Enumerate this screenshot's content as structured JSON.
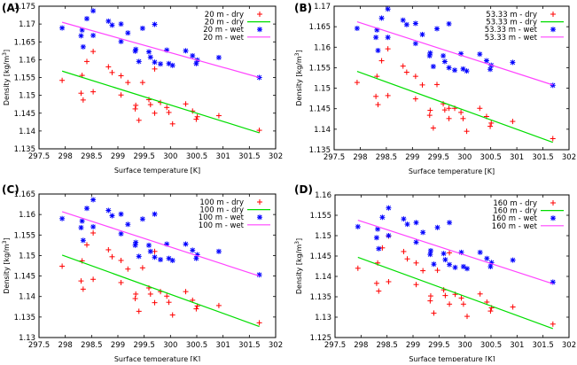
{
  "chart_data": [
    {
      "type": "scatter",
      "panel_label": "(A)",
      "xlabel": "Surface temperature [K]",
      "ylabel": "Density [kg/m",
      "ylabel_sup": "3",
      "ylabel_end": "]",
      "xlim": [
        297.5,
        302
      ],
      "ylim": [
        1.135,
        1.175
      ],
      "xticks": [
        "297.5",
        "298",
        "298.5",
        "299",
        "299.5",
        "300",
        "300.5",
        "301",
        "301.5",
        "302"
      ],
      "yticks": [
        "1.135",
        "1.14",
        "1.145",
        "1.15",
        "1.155",
        "1.16",
        "1.165",
        "1.17",
        "1.175"
      ],
      "legend": {
        "placement": "top-right",
        "entries": [
          "20 m - dry",
          "20 m - dry",
          "20 m - wet",
          "20 m - wet"
        ]
      },
      "x": [
        297.94,
        298.3,
        298.32,
        298.34,
        298.41,
        298.53,
        298.53,
        298.82,
        298.89,
        299.06,
        299.06,
        299.19,
        299.33,
        299.34,
        299.4,
        299.47,
        299.59,
        299.62,
        299.7,
        299.7,
        299.81,
        299.93,
        299.97,
        300.04,
        300.29,
        300.42,
        300.49,
        300.51,
        300.92,
        301.69
      ],
      "series": [
        {
          "name": "20 m - dry",
          "kind": "points",
          "marker": "plus",
          "color": "#ff0000",
          "values": [
            1.1542,
            1.1506,
            1.1556,
            1.1487,
            1.1595,
            1.1623,
            1.151,
            1.158,
            1.1564,
            1.1555,
            1.1501,
            1.1536,
            1.1462,
            1.1472,
            1.143,
            1.1536,
            1.1488,
            1.1474,
            1.1574,
            1.145,
            1.148,
            1.1466,
            1.1452,
            1.142,
            1.1476,
            1.1456,
            1.1433,
            1.144,
            1.1443,
            1.1402
          ]
        },
        {
          "name": "20 m - dry",
          "kind": "fit",
          "color": "#00dd00",
          "x": [
            297.94,
            301.69
          ],
          "values": [
            1.1568,
            1.1395
          ]
        },
        {
          "name": "20 m - wet",
          "kind": "points",
          "marker": "star",
          "color": "#0000ff",
          "values": [
            1.1689,
            1.1667,
            1.1683,
            1.1636,
            1.1715,
            1.1737,
            1.1668,
            1.1708,
            1.1697,
            1.17,
            1.1651,
            1.1675,
            1.1624,
            1.1629,
            1.1595,
            1.1688,
            1.1622,
            1.1607,
            1.1699,
            1.1593,
            1.1588,
            1.1627,
            1.1589,
            1.1584,
            1.1625,
            1.1611,
            1.1589,
            1.1599,
            1.1606,
            1.155
          ]
        },
        {
          "name": "20 m - wet",
          "kind": "fit",
          "color": "#ff44ff",
          "x": [
            297.94,
            301.69
          ],
          "values": [
            1.1705,
            1.155
          ]
        }
      ]
    },
    {
      "type": "scatter",
      "panel_label": "(B)",
      "xlabel": "Surface temperature [K]",
      "ylabel": "Density [kg/m",
      "ylabel_sup": "3",
      "ylabel_end": "]",
      "xlim": [
        297.5,
        302
      ],
      "ylim": [
        1.135,
        1.17
      ],
      "xticks": [
        "297.5",
        "298",
        "298.5",
        "299",
        "299.5",
        "300",
        "300.5",
        "301",
        "301.5",
        "302"
      ],
      "yticks": [
        "1.135",
        "1.14",
        "1.145",
        "1.15",
        "1.155",
        "1.16",
        "1.165",
        "1.17"
      ],
      "legend": {
        "placement": "top-right",
        "entries": [
          "53.33 m - dry",
          "53.33 m - dry",
          "53.33 m - wet",
          "53.33 m - wet"
        ]
      },
      "x": [
        297.94,
        298.3,
        298.32,
        298.34,
        298.41,
        298.53,
        298.53,
        298.82,
        298.89,
        299.06,
        299.06,
        299.19,
        299.33,
        299.34,
        299.4,
        299.47,
        299.59,
        299.62,
        299.7,
        299.7,
        299.81,
        299.93,
        299.97,
        300.04,
        300.29,
        300.42,
        300.49,
        300.51,
        300.92,
        301.69
      ],
      "series": [
        {
          "name": "53.33 m - dry",
          "kind": "points",
          "marker": "plus",
          "color": "#ff0000",
          "values": [
            1.1514,
            1.148,
            1.1529,
            1.146,
            1.1567,
            1.1596,
            1.1482,
            1.1554,
            1.1539,
            1.1529,
            1.1474,
            1.1508,
            1.1434,
            1.1446,
            1.1403,
            1.1509,
            1.1462,
            1.1447,
            1.1426,
            1.1451,
            1.1451,
            1.1441,
            1.1426,
            1.1395,
            1.1451,
            1.1431,
            1.1407,
            1.1415,
            1.1419,
            1.1377
          ]
        },
        {
          "name": "53.33 m - dry",
          "kind": "fit",
          "color": "#00dd00",
          "x": [
            297.94,
            301.69
          ],
          "values": [
            1.1541,
            1.1368
          ]
        },
        {
          "name": "53.33 m - wet",
          "kind": "points",
          "marker": "star",
          "color": "#0000ff",
          "values": [
            1.1646,
            1.1624,
            1.1642,
            1.1592,
            1.1671,
            1.1693,
            1.1624,
            1.1666,
            1.1655,
            1.1658,
            1.1609,
            1.1631,
            1.1579,
            1.1586,
            1.1553,
            1.1645,
            1.1579,
            1.1565,
            1.1657,
            1.155,
            1.1544,
            1.1584,
            1.1547,
            1.1542,
            1.1583,
            1.1567,
            1.1546,
            1.1556,
            1.1563,
            1.1507
          ]
        },
        {
          "name": "53.33 m - wet",
          "kind": "fit",
          "color": "#ff44ff",
          "x": [
            297.94,
            301.69
          ],
          "values": [
            1.1662,
            1.1508
          ]
        }
      ]
    },
    {
      "type": "scatter",
      "panel_label": "(C)",
      "xlabel": "Surface temperature [K]",
      "ylabel": "Density [kg/m",
      "ylabel_sup": "3",
      "ylabel_end": "]",
      "xlim": [
        297.5,
        302
      ],
      "ylim": [
        1.13,
        1.165
      ],
      "xticks": [
        "297.5",
        "298",
        "298.5",
        "299",
        "299.5",
        "300",
        "300.5",
        "301",
        "301.5",
        "302"
      ],
      "yticks": [
        "1.13",
        "1.135",
        "1.14",
        "1.145",
        "1.15",
        "1.155",
        "1.16",
        "1.165"
      ],
      "legend": {
        "placement": "top-right",
        "entries": [
          "100 m - dry",
          "100 m - dry",
          "100 m - wet",
          "100 m - wet"
        ]
      },
      "x": [
        297.94,
        298.3,
        298.32,
        298.34,
        298.41,
        298.53,
        298.53,
        298.82,
        298.89,
        299.06,
        299.06,
        299.19,
        299.33,
        299.34,
        299.4,
        299.47,
        299.59,
        299.62,
        299.7,
        299.7,
        299.81,
        299.93,
        299.97,
        300.04,
        300.29,
        300.42,
        300.49,
        300.51,
        300.92,
        301.69
      ],
      "series": [
        {
          "name": "100 m - dry",
          "kind": "points",
          "marker": "plus",
          "color": "#ff0000",
          "values": [
            1.1474,
            1.1438,
            1.1487,
            1.1418,
            1.1526,
            1.1555,
            1.1442,
            1.1514,
            1.1497,
            1.1488,
            1.1434,
            1.1467,
            1.1395,
            1.1406,
            1.1364,
            1.147,
            1.1421,
            1.1406,
            1.151,
            1.1385,
            1.1412,
            1.1401,
            1.1386,
            1.1355,
            1.1412,
            1.1391,
            1.137,
            1.1377,
            1.1378,
            1.1336
          ]
        },
        {
          "name": "100 m - dry",
          "kind": "fit",
          "color": "#00dd00",
          "x": [
            297.94,
            301.69
          ],
          "values": [
            1.1501,
            1.1327
          ]
        },
        {
          "name": "100 m - wet",
          "kind": "points",
          "marker": "star",
          "color": "#0000ff",
          "values": [
            1.159,
            1.1568,
            1.1584,
            1.1537,
            1.1615,
            1.1636,
            1.157,
            1.161,
            1.1597,
            1.1601,
            1.1553,
            1.1576,
            1.1525,
            1.1532,
            1.1498,
            1.1589,
            1.1525,
            1.151,
            1.1601,
            1.1496,
            1.149,
            1.1528,
            1.1493,
            1.1488,
            1.1528,
            1.1513,
            1.1493,
            1.1502,
            1.151,
            1.1453
          ]
        },
        {
          "name": "100 m - wet",
          "kind": "fit",
          "color": "#ff44ff",
          "x": [
            297.94,
            301.69
          ],
          "values": [
            1.1607,
            1.145
          ]
        }
      ]
    },
    {
      "type": "scatter",
      "panel_label": "(D)",
      "xlabel": "Surface temperature [K]",
      "ylabel": "Density [kg/m",
      "ylabel_sup": "3",
      "ylabel_end": "]",
      "xlim": [
        297.5,
        302
      ],
      "ylim": [
        1.125,
        1.16
      ],
      "xticks": [
        "297.5",
        "298",
        "298.5",
        "299",
        "299.5",
        "300",
        "300.5",
        "301",
        "301.5",
        "302"
      ],
      "yticks": [
        "1.125",
        "1.13",
        "1.135",
        "1.14",
        "1.145",
        "1.15",
        "1.155",
        "1.16"
      ],
      "legend": {
        "placement": "top-right",
        "entries": [
          "160 m - dry",
          "160 m - dry",
          "160 m - wet",
          "160 m - wet"
        ]
      },
      "x": [
        297.94,
        298.3,
        298.32,
        298.34,
        298.41,
        298.53,
        298.53,
        298.82,
        298.89,
        299.06,
        299.06,
        299.19,
        299.33,
        299.34,
        299.4,
        299.47,
        299.59,
        299.62,
        299.7,
        299.7,
        299.81,
        299.93,
        299.97,
        300.04,
        300.29,
        300.42,
        300.49,
        300.51,
        300.92,
        301.69
      ],
      "series": [
        {
          "name": "160 m - dry",
          "kind": "points",
          "marker": "plus",
          "color": "#ff0000",
          "values": [
            1.142,
            1.1383,
            1.1433,
            1.1364,
            1.147,
            1.1499,
            1.1387,
            1.1461,
            1.1443,
            1.1433,
            1.138,
            1.1414,
            1.134,
            1.1352,
            1.131,
            1.1415,
            1.1367,
            1.1353,
            1.1458,
            1.1332,
            1.1356,
            1.1347,
            1.1332,
            1.1302,
            1.1357,
            1.1337,
            1.1315,
            1.1323,
            1.1325,
            1.1283
          ]
        },
        {
          "name": "160 m - dry",
          "kind": "fit",
          "color": "#00dd00",
          "x": [
            297.94,
            301.69
          ],
          "values": [
            1.1447,
            1.1272
          ]
        },
        {
          "name": "160 m - wet",
          "kind": "points",
          "marker": "star",
          "color": "#0000ff",
          "values": [
            1.1522,
            1.1495,
            1.1516,
            1.1468,
            1.1545,
            1.1568,
            1.15,
            1.1541,
            1.1528,
            1.1532,
            1.1484,
            1.1508,
            1.1454,
            1.1463,
            1.143,
            1.152,
            1.1456,
            1.1441,
            1.1532,
            1.1429,
            1.1422,
            1.1459,
            1.1424,
            1.1419,
            1.1459,
            1.1444,
            1.1424,
            1.1434,
            1.144,
            1.1386
          ]
        },
        {
          "name": "160 m - wet",
          "kind": "fit",
          "color": "#ff44ff",
          "x": [
            297.94,
            301.69
          ],
          "values": [
            1.1538,
            1.1382
          ]
        }
      ]
    }
  ]
}
